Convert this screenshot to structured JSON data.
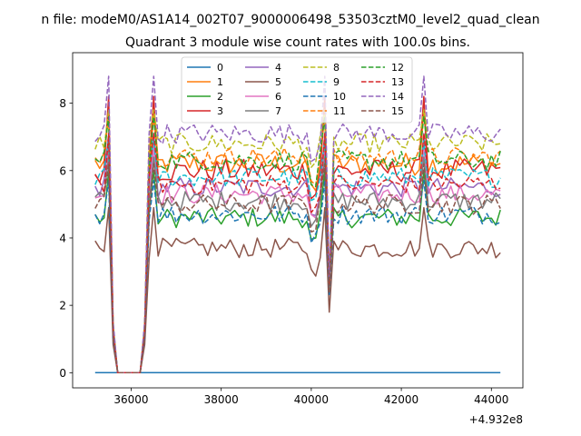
{
  "chart_data": {
    "type": "line",
    "suptitle": "n file: modeM0/AS1A14_002T07_9000006498_53503cztM0_level2_quad_clean",
    "title": "Quadrant 3 module wise count rates with 100.0s bins.",
    "xlabel": "",
    "ylabel": "",
    "x_offset_label": "+4.932e8",
    "xlim": [
      34700,
      44700
    ],
    "ylim": [
      -0.45,
      9.5
    ],
    "xticks": [
      36000,
      38000,
      40000,
      42000,
      44000
    ],
    "xtick_labels": [
      "36000",
      "38000",
      "40000",
      "42000",
      "44000"
    ],
    "yticks": [
      0,
      2,
      4,
      6,
      8
    ],
    "ytick_labels": [
      "0",
      "2",
      "4",
      "6",
      "8"
    ],
    "legend": {
      "position": "top-center",
      "columns": 4
    },
    "x_start": 35200,
    "x_step": 100,
    "n_points": 91,
    "gap_indices": [
      5,
      6,
      7,
      8,
      9,
      10
    ],
    "spike_indices": [
      3,
      13,
      51,
      73
    ],
    "series": [
      {
        "name": "0",
        "color": "#1f77b4",
        "dash": "solid",
        "base": 0.0,
        "spike": 0.0,
        "dip": 0.0,
        "noise": 0.0
      },
      {
        "name": "1",
        "color": "#ff7f0e",
        "dash": "solid",
        "base": 6.2,
        "spike": 1.6,
        "dip": 3.6,
        "noise": 0.35
      },
      {
        "name": "2",
        "color": "#2ca02c",
        "dash": "solid",
        "base": 4.6,
        "spike": 1.4,
        "dip": 2.2,
        "noise": 0.3
      },
      {
        "name": "3",
        "color": "#d62728",
        "dash": "solid",
        "base": 6.0,
        "spike": 2.2,
        "dip": 3.4,
        "noise": 0.35
      },
      {
        "name": "4",
        "color": "#9467bd",
        "dash": "solid",
        "base": 5.5,
        "spike": 1.6,
        "dip": 2.9,
        "noise": 0.3
      },
      {
        "name": "5",
        "color": "#8c564b",
        "dash": "solid",
        "base": 3.7,
        "spike": 1.2,
        "dip": 1.9,
        "noise": 0.3
      },
      {
        "name": "6",
        "color": "#e377c2",
        "dash": "solid",
        "base": 5.3,
        "spike": 1.4,
        "dip": 2.7,
        "noise": 0.3
      },
      {
        "name": "7",
        "color": "#7f7f7f",
        "dash": "solid",
        "base": 5.1,
        "spike": 1.3,
        "dip": 2.5,
        "noise": 0.3
      },
      {
        "name": "8",
        "color": "#bcbd22",
        "dash": "dashed",
        "base": 6.8,
        "spike": 1.0,
        "dip": 4.2,
        "noise": 0.3
      },
      {
        "name": "9",
        "color": "#17becf",
        "dash": "dashed",
        "base": 5.8,
        "spike": 1.1,
        "dip": 3.3,
        "noise": 0.3
      },
      {
        "name": "10",
        "color": "#1f77b4",
        "dash": "dashed",
        "base": 4.7,
        "spike": 1.0,
        "dip": 2.4,
        "noise": 0.3
      },
      {
        "name": "11",
        "color": "#ff7f0e",
        "dash": "dashed",
        "base": 6.4,
        "spike": 1.2,
        "dip": 3.8,
        "noise": 0.3
      },
      {
        "name": "12",
        "color": "#2ca02c",
        "dash": "dashed",
        "base": 6.3,
        "spike": 1.3,
        "dip": 3.7,
        "noise": 0.3
      },
      {
        "name": "13",
        "color": "#d62728",
        "dash": "dashed",
        "base": 5.6,
        "spike": 1.5,
        "dip": 3.0,
        "noise": 0.3
      },
      {
        "name": "14",
        "color": "#9467bd",
        "dash": "dashed",
        "base": 7.1,
        "spike": 1.7,
        "dip": 4.3,
        "noise": 0.3
      },
      {
        "name": "15",
        "color": "#8c564b",
        "dash": "dashed",
        "base": 5.0,
        "spike": 1.2,
        "dip": 2.6,
        "noise": 0.3
      }
    ]
  }
}
